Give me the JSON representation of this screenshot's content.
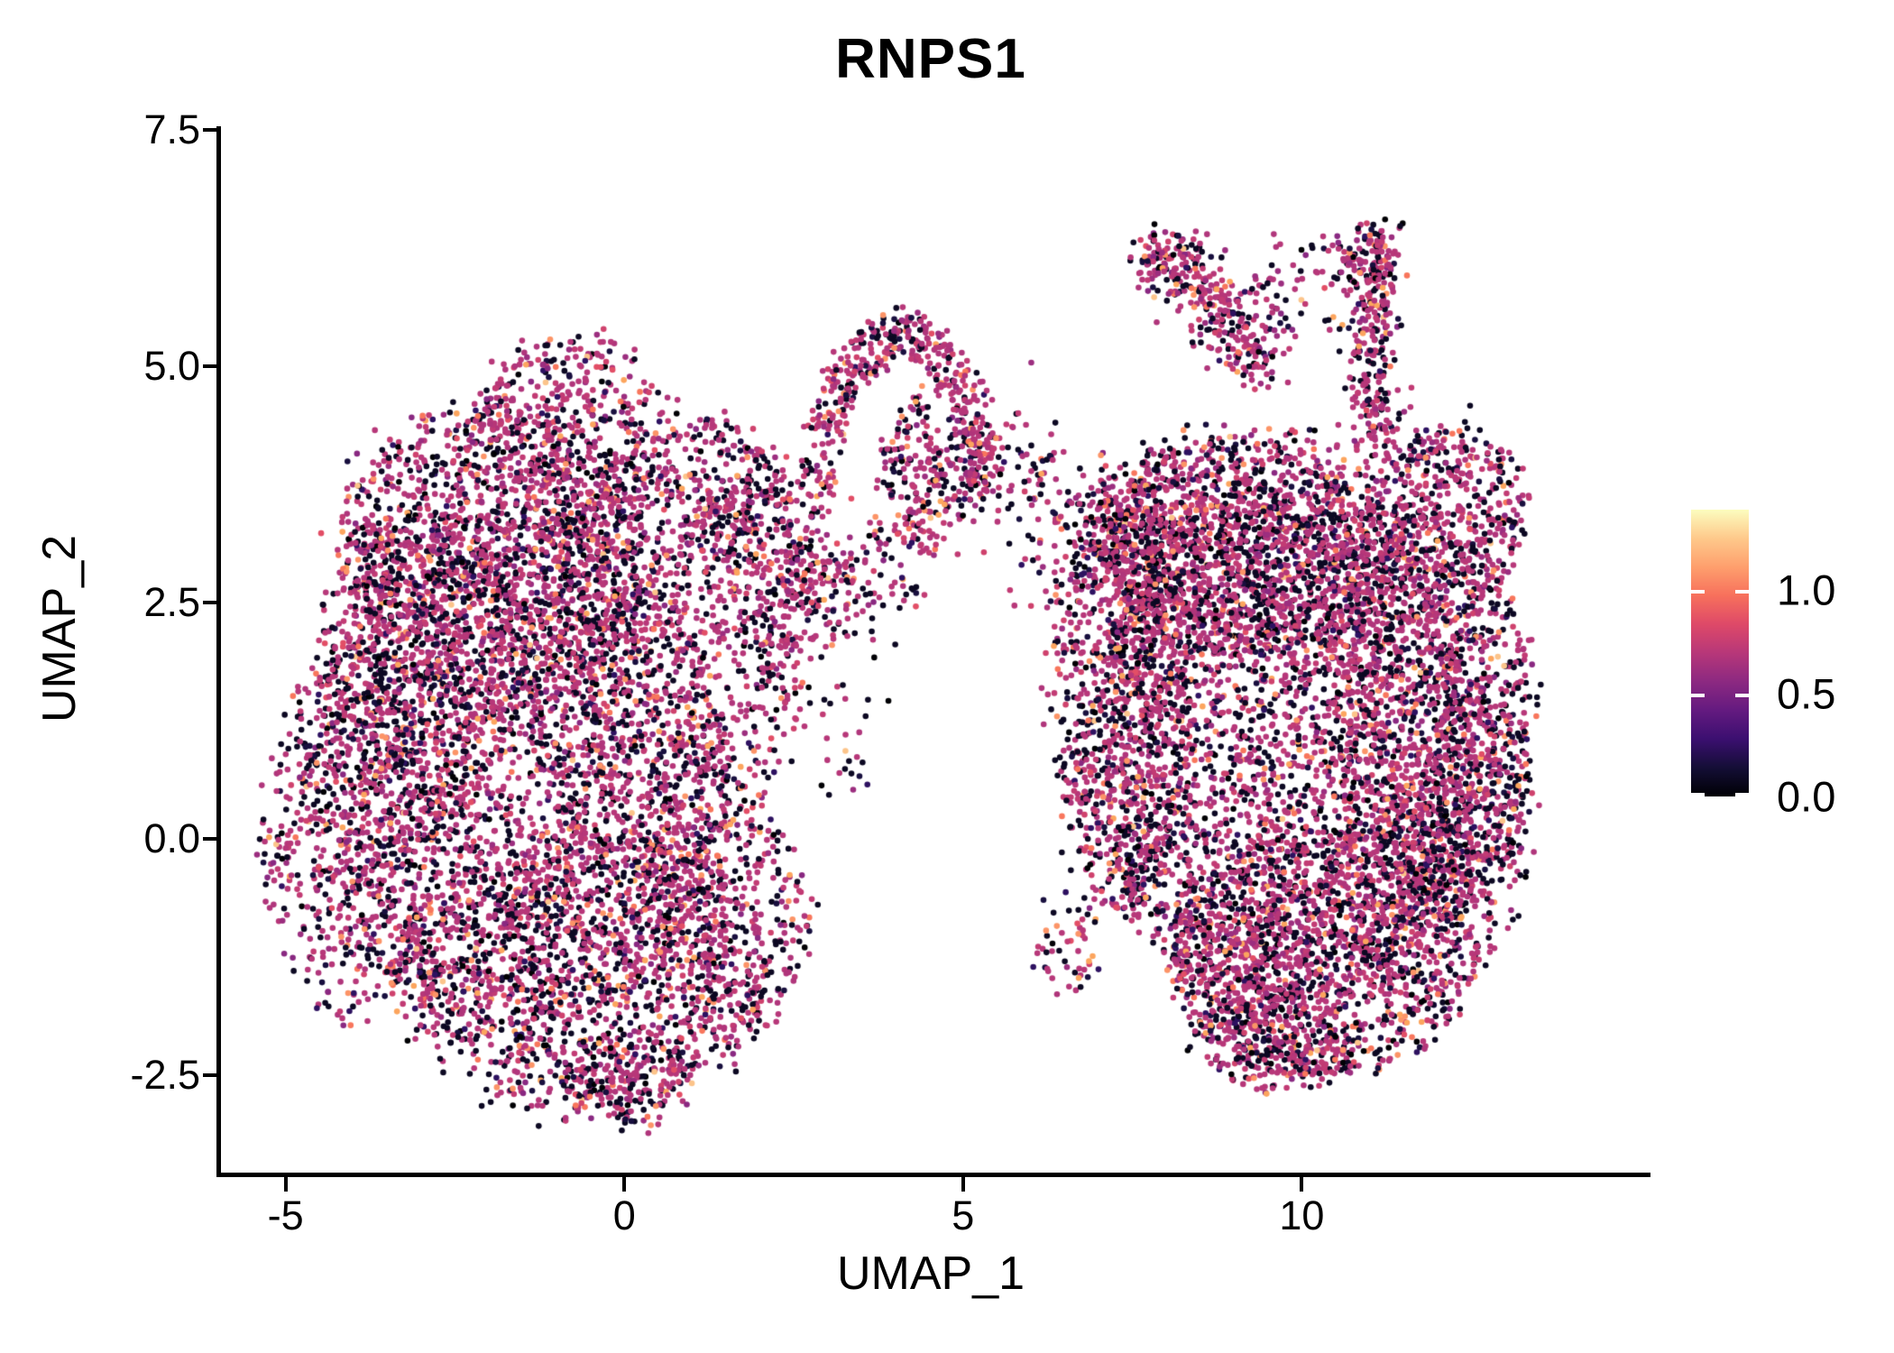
{
  "title": "RNPS1",
  "chart_data": {
    "type": "scatter",
    "title": "RNPS1",
    "xlabel": "UMAP_1",
    "ylabel": "UMAP_2",
    "xlim": [
      -5.98,
      15.04
    ],
    "ylim": [
      -3.53,
      7.52
    ],
    "x_ticks": [
      {
        "v": -5,
        "label": "-5"
      },
      {
        "v": 0,
        "label": "0"
      },
      {
        "v": 5,
        "label": "5"
      },
      {
        "v": 10,
        "label": "10"
      }
    ],
    "y_ticks": [
      {
        "v": 7.5,
        "label": "7.5"
      },
      {
        "v": 5.0,
        "label": "5.0"
      },
      {
        "v": 2.5,
        "label": "2.5"
      },
      {
        "v": 0.0,
        "label": "0.0"
      },
      {
        "v": -2.5,
        "label": "-2.5"
      }
    ],
    "grid": false,
    "legend_position": "right",
    "colorbar": {
      "vmin": 0.0,
      "vmax": 1.39,
      "ticks": [
        {
          "v": 1.0,
          "label": "1.0"
        },
        {
          "v": 0.5,
          "label": "0.5"
        },
        {
          "v": 0.0,
          "label": "0.0"
        }
      ],
      "colormap": "magma",
      "magma_stops": [
        "#000004",
        "#140e36",
        "#3b0f70",
        "#641a80",
        "#8c2981",
        "#b73779",
        "#de4968",
        "#f7705c",
        "#fe9f6d",
        "#fec98b",
        "#fcfdbf"
      ]
    },
    "point_radius_px": 3.3,
    "n_points": 19245,
    "palette_black": [
      [
        "#0c0822",
        70
      ],
      [
        "#180f3e",
        14
      ],
      [
        "#2d1160",
        6
      ],
      [
        "#000004",
        10
      ]
    ],
    "palette_expr": [
      [
        "#b73779",
        40
      ],
      [
        "#b0357b",
        16
      ],
      [
        "#c23b74",
        14
      ],
      [
        "#9c2e7f",
        7
      ],
      [
        "#cf426d",
        5
      ],
      [
        "#892881",
        3
      ],
      [
        "#f8765c",
        3
      ],
      [
        "#fc9467",
        3
      ],
      [
        "#fca55e",
        2
      ],
      [
        "#e24e66",
        2
      ],
      [
        "#fcc48a",
        0.6
      ]
    ],
    "clusters": [
      {
        "kind": "blob",
        "cx": -1.6,
        "cy": 0.7,
        "rx": 3.2,
        "ry": 2.7,
        "n": 2300,
        "pb": 0.36
      },
      {
        "kind": "blob",
        "cx": -1.9,
        "cy": 3.0,
        "rx": 2.4,
        "ry": 1.6,
        "n": 1250,
        "pb": 0.33
      },
      {
        "kind": "blob",
        "cx": -0.8,
        "cy": 4.25,
        "rx": 1.5,
        "ry": 1.05,
        "n": 520,
        "pb": 0.3
      },
      {
        "kind": "blob",
        "cx": 0.5,
        "cy": 1.9,
        "rx": 2.1,
        "ry": 2.1,
        "n": 1000,
        "pb": 0.35
      },
      {
        "kind": "blob",
        "cx": -0.6,
        "cy": -1.4,
        "rx": 2.7,
        "ry": 1.5,
        "n": 1300,
        "pb": 0.36
      },
      {
        "kind": "blob",
        "cx": -4.0,
        "cy": 0.0,
        "rx": 1.35,
        "ry": 1.9,
        "n": 520,
        "pb": 0.34
      },
      {
        "kind": "blob",
        "cx": 1.5,
        "cy": -0.9,
        "rx": 1.2,
        "ry": 1.3,
        "n": 380,
        "pb": 0.35
      },
      {
        "kind": "blob",
        "cx": 2.2,
        "cy": 2.9,
        "rx": 0.85,
        "ry": 1.1,
        "n": 260,
        "pb": 0.3
      },
      {
        "kind": "blob",
        "cx": -3.0,
        "cy": 1.8,
        "rx": 1.5,
        "ry": 1.8,
        "n": 650,
        "pb": 0.35
      },
      {
        "kind": "blob",
        "cx": 1.4,
        "cy": 3.75,
        "rx": 0.8,
        "ry": 0.7,
        "n": 200,
        "pb": 0.32
      },
      {
        "kind": "blob",
        "cx": 0.0,
        "cy": -2.55,
        "rx": 1.0,
        "ry": 0.5,
        "n": 160,
        "pb": 0.34
      },
      {
        "kind": "arc",
        "cx": 4.1,
        "cy": 3.35,
        "rx": 1.3,
        "ry": 1.95,
        "thick": 0.5,
        "a0": 10,
        "a1": 170,
        "n": 420,
        "pb": 0.24
      },
      {
        "kind": "blob",
        "cx": 4.55,
        "cy": 3.9,
        "rx": 0.8,
        "ry": 0.85,
        "n": 260,
        "pb": 0.26
      },
      {
        "kind": "curve",
        "p": [
          [
            5.3,
            4.05
          ],
          [
            6.2,
            3.8
          ],
          [
            7.2,
            3.3
          ]
        ],
        "w": 0.3,
        "n": 120,
        "pb": 0.32
      },
      {
        "kind": "blob",
        "cx": 3.9,
        "cy": 2.9,
        "rx": 0.9,
        "ry": 0.5,
        "n": 80,
        "pb": 0.3
      },
      {
        "kind": "curve",
        "p": [
          [
            2.75,
            3.4
          ],
          [
            2.85,
            2.9
          ],
          [
            3.0,
            2.5
          ]
        ],
        "w": 0.25,
        "n": 80,
        "pb": 0.3
      },
      {
        "kind": "blob",
        "cx": 3.25,
        "cy": 1.6,
        "rx": 0.7,
        "ry": 1.2,
        "n": 60,
        "pb": 0.3
      },
      {
        "kind": "curve",
        "p": [
          [
            7.7,
            6.15
          ],
          [
            8.7,
            5.95
          ],
          [
            9.4,
            4.9
          ]
        ],
        "w": 0.17,
        "n": 210,
        "pb": 0.28
      },
      {
        "kind": "blob",
        "cx": 8.15,
        "cy": 6.1,
        "rx": 0.6,
        "ry": 0.32,
        "n": 70,
        "pb": 0.25
      },
      {
        "kind": "blob",
        "cx": 9.15,
        "cy": 5.4,
        "rx": 0.8,
        "ry": 0.55,
        "n": 80,
        "pb": 0.3
      },
      {
        "kind": "blob",
        "cx": 10.15,
        "cy": 5.85,
        "rx": 0.95,
        "ry": 0.5,
        "n": 65,
        "pb": 0.3
      },
      {
        "kind": "curve",
        "p": [
          [
            11.25,
            6.3
          ],
          [
            10.95,
            5.3
          ],
          [
            11.05,
            4.35
          ]
        ],
        "w": 0.16,
        "n": 240,
        "pb": 0.3
      },
      {
        "kind": "curve",
        "p": [
          [
            11.2,
            6.3
          ],
          [
            10.8,
            6.35
          ],
          [
            10.55,
            5.95
          ]
        ],
        "w": 0.12,
        "n": 50,
        "pb": 0.28
      },
      {
        "kind": "curve",
        "p": [
          [
            11.05,
            4.4
          ],
          [
            11.3,
            4.0
          ],
          [
            11.6,
            3.7
          ]
        ],
        "w": 0.3,
        "n": 90,
        "pb": 0.3
      },
      {
        "kind": "blob",
        "cx": 9.7,
        "cy": 1.0,
        "rx": 2.9,
        "ry": 2.75,
        "n": 3000,
        "pb": 0.37
      },
      {
        "kind": "blob",
        "cx": 9.2,
        "cy": 3.1,
        "rx": 2.2,
        "ry": 1.2,
        "n": 1300,
        "pb": 0.34
      },
      {
        "kind": "blob",
        "cx": 11.9,
        "cy": 1.3,
        "rx": 1.5,
        "ry": 2.1,
        "n": 1100,
        "pb": 0.36
      },
      {
        "kind": "blob",
        "cx": 10.3,
        "cy": -1.2,
        "rx": 2.3,
        "ry": 1.3,
        "n": 1300,
        "pb": 0.37
      },
      {
        "kind": "blob",
        "cx": 7.35,
        "cy": 1.4,
        "rx": 1.0,
        "ry": 2.2,
        "n": 800,
        "pb": 0.4
      },
      {
        "kind": "blob",
        "cx": 9.6,
        "cy": -2.1,
        "rx": 1.2,
        "ry": 0.5,
        "n": 280,
        "pb": 0.36
      },
      {
        "kind": "blob",
        "cx": 7.8,
        "cy": 3.3,
        "rx": 0.9,
        "ry": 0.8,
        "n": 260,
        "pb": 0.34
      },
      {
        "kind": "blob",
        "cx": 12.3,
        "cy": 3.5,
        "rx": 1.0,
        "ry": 0.85,
        "n": 380,
        "pb": 0.3
      },
      {
        "kind": "blob",
        "cx": 12.6,
        "cy": 0.2,
        "rx": 0.8,
        "ry": 1.5,
        "n": 350,
        "pb": 0.36
      },
      {
        "kind": "curve",
        "p": [
          [
            5.9,
            3.35
          ],
          [
            6.4,
            3.0
          ],
          [
            6.9,
            2.6
          ]
        ],
        "w": 0.4,
        "n": 60,
        "pb": 0.35
      },
      {
        "kind": "blob",
        "cx": 6.5,
        "cy": -1.1,
        "rx": 0.5,
        "ry": 0.6,
        "n": 50,
        "pb": 0.36
      }
    ]
  }
}
